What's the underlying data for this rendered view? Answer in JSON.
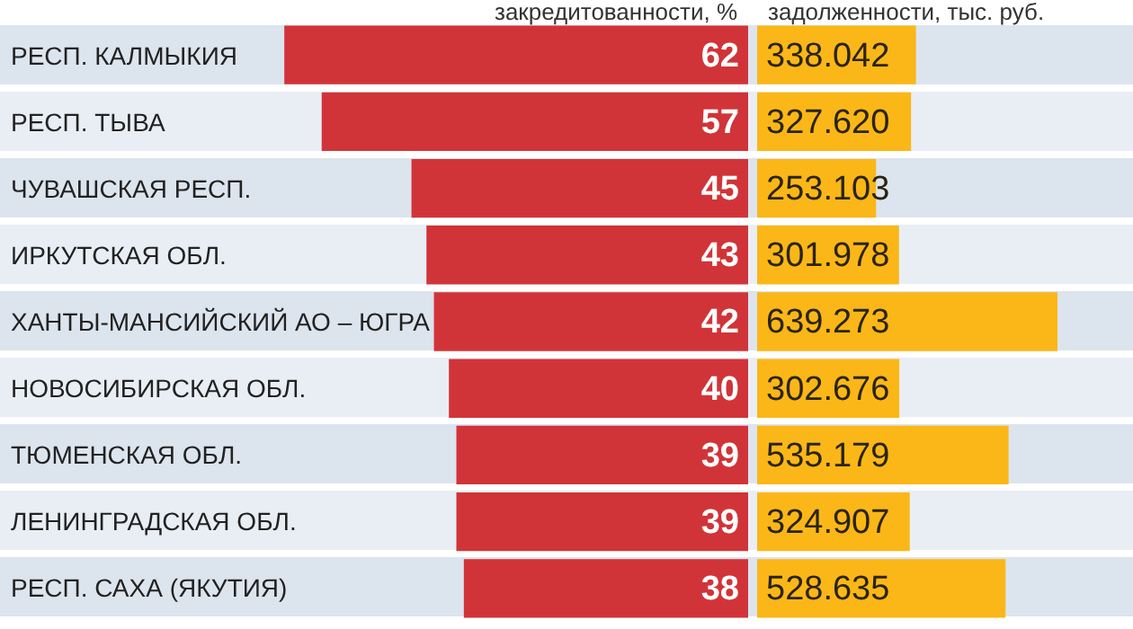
{
  "chart_data": [
    {
      "type": "bar",
      "orientation": "horizontal",
      "title": "закредитованности, %",
      "categories": [
        "РЕСП. КАЛМЫКИЯ",
        "РЕСП. ТЫВА",
        "ЧУВАШСКАЯ РЕСП.",
        "ИРКУТСКАЯ ОБЛ.",
        "ХАНТЫ-МАНСИЙСКИЙ АО – ЮГРА",
        "НОВОСИБИРСКАЯ ОБЛ.",
        "ТЮМЕНСКАЯ ОБЛ.",
        "ЛЕНИНГРАДСКАЯ ОБЛ.",
        "РЕСП. САХА (ЯКУТИЯ)"
      ],
      "values": [
        62,
        57,
        45,
        43,
        42,
        40,
        39,
        39,
        38
      ],
      "color": "#d13438",
      "data_labels": true,
      "tick_labels": "y"
    },
    {
      "type": "bar",
      "orientation": "horizontal",
      "title": "задолженности, тыс. руб.",
      "categories": [
        null,
        null,
        null,
        null,
        null,
        null,
        null,
        null,
        null
      ],
      "values": [
        338.042,
        327.62,
        253.103,
        301.978,
        639.273,
        302.676,
        535.179,
        324.907,
        528.635
      ],
      "value_labels": [
        "338.042",
        "327.620",
        "253.103",
        "301.978",
        "639.273",
        "302.676",
        "535.179",
        "324.907",
        "528.635"
      ],
      "color": "#fbb718",
      "tick_labels": false
    }
  ]
}
